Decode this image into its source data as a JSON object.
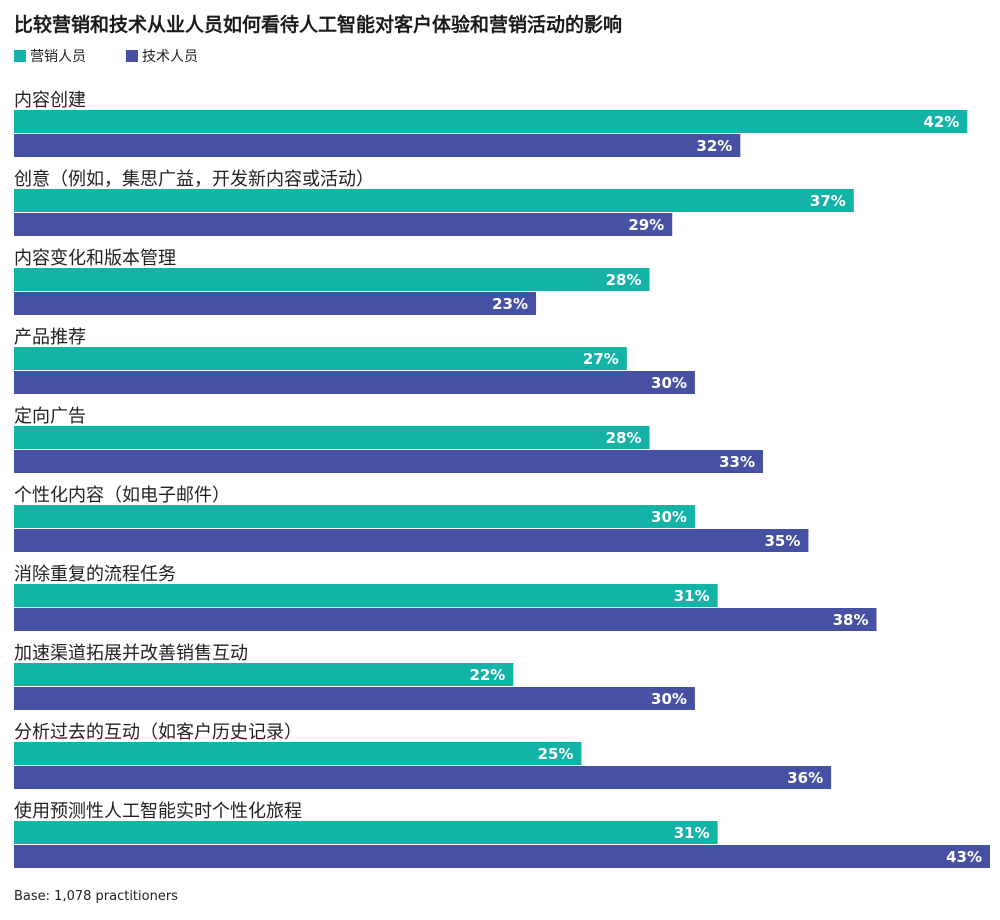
{
  "chart_data": {
    "type": "bar",
    "orientation": "horizontal",
    "title": "比较营销和技术从业人员如何看待人工智能对客户体验和营销活动的影响",
    "legend_position": "top-left",
    "xlim": [
      0,
      43
    ],
    "categories": [
      "内容创建",
      "创意（例如，集思广益，开发新内容或活动）",
      "内容变化和版本管理",
      "产品推荐",
      "定向广告",
      "个性化内容（如电子邮件）",
      "消除重复的流程任务",
      "加速渠道拓展并改善销售互动",
      "分析过去的互动（如客户历史记录）",
      "使用预测性人工智能实时个性化旅程"
    ],
    "series": [
      {
        "name": "营销人员",
        "color": "#14b3a8",
        "values": [
          42,
          37,
          28,
          27,
          28,
          30,
          31,
          22,
          25,
          31
        ],
        "labels": [
          "42%",
          "37%",
          "28%",
          "27%",
          "28%",
          "30%",
          "31%",
          "22%",
          "25%",
          "31%"
        ]
      },
      {
        "name": "技术人员",
        "color": "#4751a3",
        "values": [
          32,
          29,
          23,
          30,
          33,
          35,
          38,
          30,
          36,
          43
        ],
        "labels": [
          "32%",
          "29%",
          "23%",
          "30%",
          "33%",
          "35%",
          "38%",
          "30%",
          "36%",
          "43%"
        ]
      }
    ],
    "note": "Base: 1,078 practitioners"
  }
}
